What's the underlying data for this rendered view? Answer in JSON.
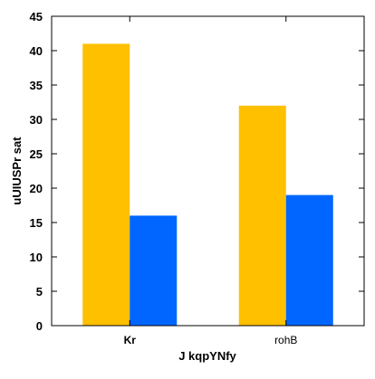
{
  "chart_data": {
    "type": "bar",
    "categories": [
      "Kr",
      "rohB"
    ],
    "series": [
      {
        "values": [
          41,
          32
        ],
        "color": "#FFC000"
      },
      {
        "values": [
          16,
          19
        ],
        "color": "#0066FF"
      }
    ],
    "title": "",
    "xlabel": "J kqpYNfy",
    "ylabel": "uUIUSPr sat",
    "ylim": [
      0,
      45
    ],
    "yticks": [
      0,
      5,
      10,
      15,
      20,
      25,
      30,
      35,
      40,
      45
    ],
    "grid": false,
    "legend": "none"
  }
}
